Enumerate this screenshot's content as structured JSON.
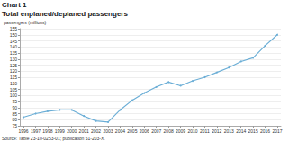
{
  "chart_data": {
    "type": "line",
    "title": "Chart 1",
    "subtitle": "Total enplaned/deplaned passengers",
    "ylabel": "passengers (millions)",
    "annotations": [
      "Source: Table 23-10-0253-01; publication 51-203-X."
    ],
    "x": [
      1996,
      1997,
      1998,
      1999,
      2000,
      2001,
      2002,
      2003,
      2004,
      2005,
      2006,
      2007,
      2008,
      2009,
      2010,
      2011,
      2012,
      2013,
      2014,
      2015,
      2016,
      2017
    ],
    "values": [
      82,
      85,
      87,
      88,
      88,
      83,
      79,
      78,
      88,
      96,
      102,
      107,
      111,
      108,
      112,
      115,
      119,
      123,
      128,
      131,
      141,
      150
    ],
    "color": "#6baed6",
    "marker": "circle",
    "xlim": [
      1995.7,
      2017.3
    ],
    "xticks": [
      1996,
      1997,
      1998,
      1999,
      2000,
      2001,
      2002,
      2003,
      2004,
      2005,
      2006,
      2007,
      2008,
      2009,
      2010,
      2011,
      2012,
      2013,
      2014,
      2015,
      2016,
      2017
    ],
    "ylim": [
      75,
      155
    ],
    "yticks": [
      75,
      80,
      85,
      90,
      95,
      100,
      105,
      110,
      115,
      120,
      125,
      130,
      135,
      140,
      145,
      150,
      155
    ],
    "grid": true
  }
}
